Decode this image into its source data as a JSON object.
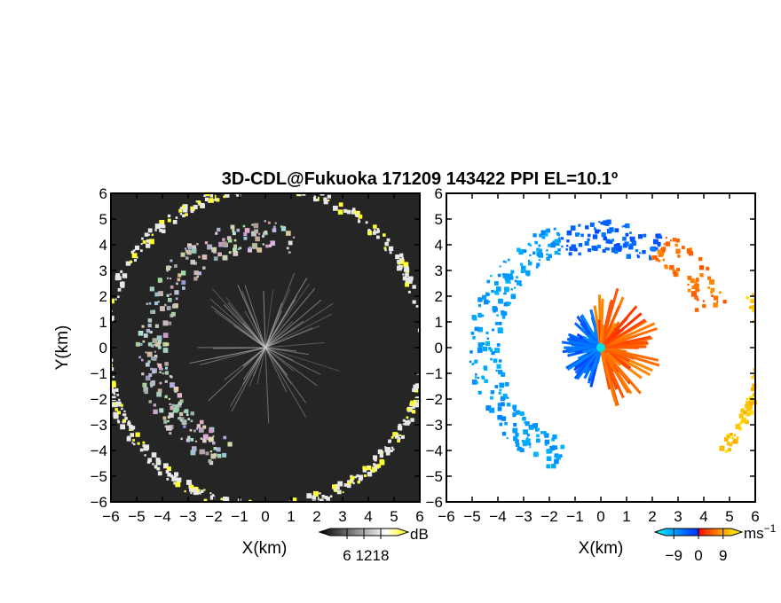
{
  "chart_data": [
    {
      "type": "heatmap",
      "panel": "left",
      "title": "3D-CDL@Fukuoka 171209 143422 PPI EL=10.1º",
      "xlabel": "X(km)",
      "ylabel": "Y(km)",
      "xlim": [
        -6,
        6
      ],
      "ylim": [
        -6,
        6
      ],
      "x_ticks": [
        "−6",
        "−5",
        "−4",
        "−3",
        "−2",
        "−1",
        "0",
        "1",
        "2",
        "3",
        "4",
        "5",
        "6"
      ],
      "y_ticks": [
        "6",
        "5",
        "4",
        "3",
        "2",
        "1",
        "0",
        "−1",
        "−2",
        "−3",
        "−4",
        "−5",
        "−6"
      ],
      "colorbar": {
        "unit": "dB",
        "ticks": [
          "6",
          "12",
          "18"
        ],
        "tick_values": [
          6,
          12,
          18
        ],
        "range": [
          0,
          24
        ],
        "colors": [
          "#000000",
          "#ffffff",
          "#ffff00"
        ]
      },
      "background": "#252525",
      "features": [
        {
          "name": "arc-cloud-band",
          "kind": "arc",
          "cx": 0,
          "cy": 0,
          "r": 4.4,
          "from_deg": 75,
          "to_deg": 250
        },
        {
          "name": "outer-ring",
          "kind": "arc",
          "cx": 0,
          "cy": 0,
          "r": 6.2,
          "from_deg": 0,
          "to_deg": 360
        },
        {
          "name": "center-rays",
          "kind": "rays",
          "cx": 0,
          "cy": 0,
          "max_r": 3.2
        }
      ]
    },
    {
      "type": "heatmap",
      "panel": "right",
      "xlabel": "X(km)",
      "xlim": [
        -6,
        6
      ],
      "ylim": [
        -6,
        6
      ],
      "x_ticks": [
        "−6",
        "−5",
        "−4",
        "−3",
        "−2",
        "−1",
        "0",
        "1",
        "2",
        "3",
        "4",
        "5",
        "6"
      ],
      "y_ticks": [
        "6",
        "5",
        "4",
        "3",
        "2",
        "1",
        "0",
        "−1",
        "−2",
        "−3",
        "−4",
        "−5",
        "−6"
      ],
      "colorbar": {
        "unit": "ms",
        "unit_exp": "−1",
        "ticks": [
          "−9",
          "0",
          "9"
        ],
        "tick_values": [
          -9,
          0,
          9
        ],
        "range": [
          -12,
          12
        ],
        "colors": [
          "#00ffff",
          "#0066ff",
          "#ff0000",
          "#ff9900",
          "#ffff00"
        ]
      },
      "background": "#ffffff",
      "features": [
        {
          "name": "west-band",
          "kind": "arc",
          "cx": 0,
          "cy": 0,
          "r": 4.5,
          "from_deg": 110,
          "to_deg": 250,
          "velocity": -6
        },
        {
          "name": "north-band",
          "kind": "arc",
          "cx": 0,
          "cy": 0,
          "r": 4.3,
          "from_deg": 60,
          "to_deg": 110,
          "velocity": -3
        },
        {
          "name": "northeast-band",
          "kind": "arc",
          "cx": 0,
          "cy": 0,
          "r": 4.6,
          "from_deg": 20,
          "to_deg": 60,
          "velocity": 5
        },
        {
          "name": "east-ring",
          "kind": "arc",
          "cx": 0,
          "cy": 0,
          "r": 6.2,
          "from_deg": -40,
          "to_deg": 20,
          "velocity": 9
        },
        {
          "name": "center-burst-west",
          "kind": "rays",
          "cx": 0,
          "cy": 0,
          "max_r": 1.6,
          "from_deg": 100,
          "to_deg": 260,
          "velocity": -3
        },
        {
          "name": "center-burst-east",
          "kind": "rays",
          "cx": 0,
          "cy": 0,
          "max_r": 2.4,
          "from_deg": -80,
          "to_deg": 100,
          "velocity": 4
        }
      ]
    }
  ]
}
